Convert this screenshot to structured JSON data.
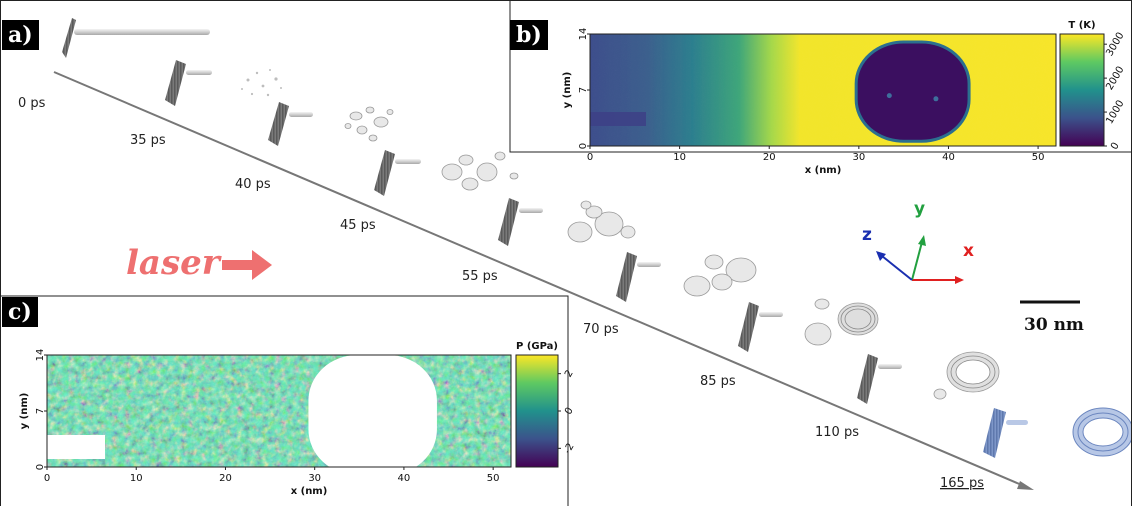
{
  "panels": {
    "a": "a)",
    "b": "b)",
    "c": "c)"
  },
  "timeline": {
    "times": [
      "0 ps",
      "35 ps",
      "40 ps",
      "45 ps",
      "55 ps",
      "70 ps",
      "85 ps",
      "110 ps",
      "165 ps"
    ],
    "highlight_color": "#3a5fa8",
    "snapshot_color": "#cfcfcf",
    "final_snapshot_color": "#8ea8d6"
  },
  "laser": {
    "label": "laser",
    "color": "#ee7070"
  },
  "scale_bar": {
    "label": "30 nm"
  },
  "axes_triad": {
    "x": {
      "label": "x",
      "color": "#e02020"
    },
    "y": {
      "label": "y",
      "color": "#22a040"
    },
    "z": {
      "label": "z",
      "color": "#1a2fb0"
    }
  },
  "chart_data": [
    {
      "type": "heatmap",
      "panel": "b",
      "title": "",
      "xlabel": "x (nm)",
      "ylabel": "y (nm)",
      "xlim": [
        0,
        52
      ],
      "ylim": [
        0,
        14
      ],
      "x_ticks": [
        "0",
        "10",
        "20",
        "30",
        "40",
        "50"
      ],
      "y_ticks": [
        "0",
        "7",
        "14"
      ],
      "colorbar": {
        "title": "T (K)",
        "range": [
          0,
          3300
        ],
        "ticks": [
          "0",
          "1000",
          "2000",
          "3000"
        ]
      },
      "features": {
        "void_center_x": 36,
        "void_center_y": 6.8,
        "void_radius_x": 6.3,
        "void_radius_y": 6.2,
        "hot_region_start_x": 20,
        "cool_tip_length_x": 6
      }
    },
    {
      "type": "heatmap",
      "panel": "c",
      "title": "",
      "xlabel": "x (nm)",
      "ylabel": "y (nm)",
      "xlim": [
        0,
        52
      ],
      "ylim": [
        0,
        14
      ],
      "x_ticks": [
        "0",
        "10",
        "20",
        "30",
        "40",
        "50"
      ],
      "y_ticks": [
        "0",
        "7",
        "14"
      ],
      "colorbar": {
        "title": "P (GPa)",
        "range": [
          -3,
          3
        ],
        "ticks": [
          "-2",
          "0",
          "2"
        ]
      },
      "features": {
        "void_center_x": 36.5,
        "void_center_y": 6.5,
        "void_radius_x": 7.2,
        "void_radius_y": 7.5,
        "blank_region_x": [
          0,
          6.5
        ],
        "blank_region_y": [
          1,
          4
        ]
      }
    }
  ]
}
